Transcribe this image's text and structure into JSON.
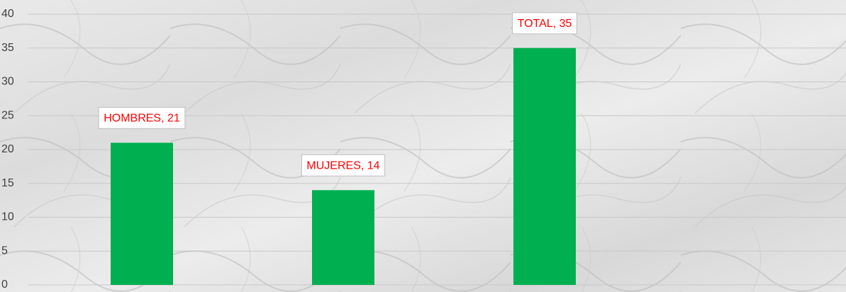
{
  "chart_data": {
    "type": "bar",
    "categories": [
      "HOMBRES",
      "MUJERES",
      "TOTAL"
    ],
    "values": [
      21,
      14,
      35
    ],
    "value_labels": [
      "HOMBRES, 21",
      "MUJERES, 14",
      "TOTAL, 35"
    ],
    "color": "#00b050",
    "ylim": [
      0,
      40
    ],
    "yticks": [
      0,
      5,
      10,
      15,
      20,
      25,
      30,
      35,
      40
    ],
    "grid": true
  }
}
